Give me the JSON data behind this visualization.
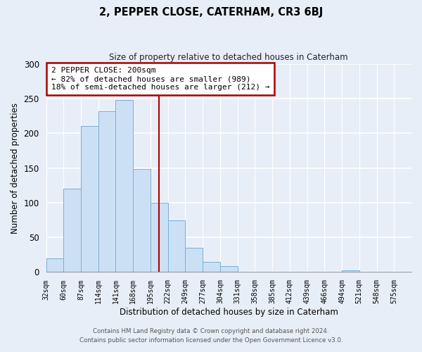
{
  "title": "2, PEPPER CLOSE, CATERHAM, CR3 6BJ",
  "subtitle": "Size of property relative to detached houses in Caterham",
  "xlabel": "Distribution of detached houses by size in Caterham",
  "ylabel": "Number of detached properties",
  "bar_heights": [
    20,
    120,
    210,
    232,
    248,
    148,
    100,
    74,
    35,
    15,
    9,
    0,
    0,
    0,
    0,
    0,
    0,
    2,
    0,
    0,
    0
  ],
  "bin_labels": [
    "32sqm",
    "60sqm",
    "87sqm",
    "114sqm",
    "141sqm",
    "168sqm",
    "195sqm",
    "222sqm",
    "249sqm",
    "277sqm",
    "304sqm",
    "331sqm",
    "358sqm",
    "385sqm",
    "412sqm",
    "439sqm",
    "466sqm",
    "494sqm",
    "521sqm",
    "548sqm",
    "575sqm"
  ],
  "bar_color": "#cce0f5",
  "bar_edge_color": "#7aafd4",
  "vline_position": 6.5,
  "vline_color": "#aa0000",
  "annotation_title": "2 PEPPER CLOSE: 200sqm",
  "annotation_line1": "← 82% of detached houses are smaller (989)",
  "annotation_line2": "18% of semi-detached houses are larger (212) →",
  "annotation_box_color": "#ffffff",
  "annotation_box_edge": "#aa0000",
  "ylim": [
    0,
    300
  ],
  "yticks": [
    0,
    50,
    100,
    150,
    200,
    250,
    300
  ],
  "footer1": "Contains HM Land Registry data © Crown copyright and database right 2024.",
  "footer2": "Contains public sector information licensed under the Open Government Licence v3.0.",
  "background_color": "#e8eef8",
  "plot_bg_color": "#e8eef8",
  "figsize": [
    6.0,
    5.0
  ],
  "dpi": 100
}
